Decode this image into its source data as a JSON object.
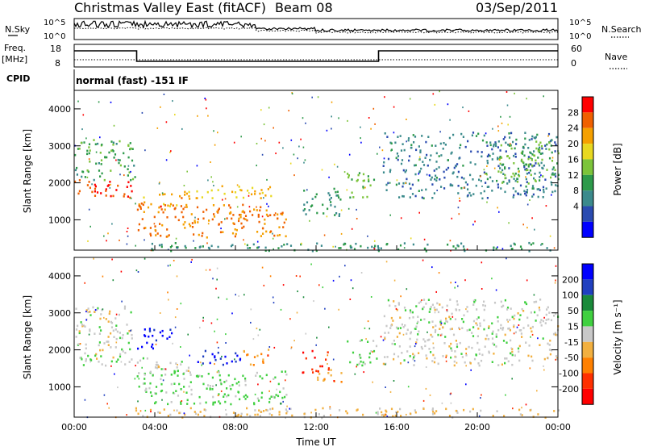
{
  "header": {
    "title": "Christmas Valley East (fitACF)",
    "beam": "Beam 08",
    "date": "03/Sep/2011"
  },
  "noise_panel": {
    "left_label": "N.Sky",
    "right_label": "N.Search",
    "y_ticks_left": [
      "10^5",
      "10^0"
    ],
    "y_ticks_right": [
      "10^5",
      "10^0"
    ]
  },
  "freq_panel": {
    "left_label_line1": "Freq.",
    "left_label_line2": "[MHz]",
    "right_label": "Nave",
    "y_ticks_left": [
      "18",
      "8"
    ],
    "y_ticks_right": [
      "60",
      "0"
    ],
    "freq_steps": [
      [
        0,
        16
      ],
      [
        3.1,
        9.5
      ],
      [
        15.1,
        16
      ],
      [
        24,
        16
      ]
    ]
  },
  "cpid": {
    "label": "CPID",
    "text": "normal (fast) -151 IF"
  },
  "power_panel": {
    "ylabel": "Slant Range [km]",
    "y_ticks": [
      "1000",
      "2000",
      "3000",
      "4000"
    ],
    "colorbar_label": "Power [dB]",
    "colorbar_ticks": [
      "4",
      "8",
      "12",
      "16",
      "20",
      "24",
      "28"
    ],
    "colors": [
      "#0000ff",
      "#2a4bb0",
      "#3b8a8c",
      "#2d9a4a",
      "#7cc43a",
      "#e8d820",
      "#f5a000",
      "#f06000",
      "#ff0000"
    ]
  },
  "velocity_panel": {
    "ylabel": "Slant Range [km]",
    "y_ticks": [
      "1000",
      "2000",
      "3000",
      "4000"
    ],
    "colorbar_label": "Velocity [m s⁻¹]",
    "colorbar_ticks": [
      "200",
      "100",
      "50",
      "15",
      "-15",
      "-50",
      "-100",
      "-200"
    ],
    "colors": [
      "#0000ff",
      "#2040c0",
      "#1a8a3a",
      "#40d040",
      "#c8c8c8",
      "#f2b040",
      "#ff8000",
      "#ff3000",
      "#ff0000"
    ]
  },
  "x_axis": {
    "label": "Time UT",
    "ticks": [
      "00:00",
      "04:00",
      "08:00",
      "12:00",
      "16:00",
      "20:00",
      "00:00"
    ]
  },
  "chart_data": [
    {
      "type": "heatmap",
      "title": "Christmas Valley East (fitACF)",
      "xlabel": "Time UT",
      "ylabel": "Slant Range [km]",
      "xlim": [
        0,
        24
      ],
      "ylim": [
        180,
        4500
      ],
      "colorbar": "Power [dB]",
      "clim": [
        0,
        30
      ],
      "regions": [
        {
          "t0": 0.0,
          "t1": 3.0,
          "r0": 1600,
          "r1": 2100,
          "value": 26
        },
        {
          "t0": 0.0,
          "t1": 3.0,
          "r0": 2100,
          "r1": 3200,
          "value": 12
        },
        {
          "t0": 3.1,
          "t1": 5.8,
          "r0": 1350,
          "r1": 1800,
          "value": 22
        },
        {
          "t0": 3.1,
          "t1": 10.5,
          "r0": 550,
          "r1": 1450,
          "value": 24
        },
        {
          "t0": 6.0,
          "t1": 9.8,
          "r0": 1600,
          "r1": 1950,
          "value": 20
        },
        {
          "t0": 11.3,
          "t1": 13.2,
          "r0": 1100,
          "r1": 1900,
          "value": 10
        },
        {
          "t0": 13.5,
          "t1": 15.0,
          "r0": 1600,
          "r1": 2300,
          "value": 14
        },
        {
          "t0": 15.3,
          "t1": 24.0,
          "r0": 1600,
          "r1": 3400,
          "value": 8
        },
        {
          "t0": 21.0,
          "t1": 24.0,
          "r0": 2000,
          "r1": 3200,
          "value": 14
        },
        {
          "t0": 3.0,
          "t1": 24.0,
          "r0": 180,
          "r1": 400,
          "value": 10
        }
      ]
    },
    {
      "type": "heatmap",
      "xlabel": "Time UT",
      "ylabel": "Slant Range [km]",
      "xlim": [
        0,
        24
      ],
      "ylim": [
        180,
        4500
      ],
      "colorbar": "Velocity [m s⁻¹]",
      "clim": [
        -250,
        250
      ],
      "regions": [
        {
          "t0": 0.0,
          "t1": 3.0,
          "r0": 1600,
          "r1": 3200,
          "value": 0
        },
        {
          "t0": 3.1,
          "t1": 5.0,
          "r0": 2050,
          "r1": 2600,
          "value": 220
        },
        {
          "t0": 3.1,
          "t1": 5.8,
          "r0": 1350,
          "r1": 1800,
          "value": 0
        },
        {
          "t0": 3.1,
          "t1": 10.5,
          "r0": 550,
          "r1": 1450,
          "value": 40
        },
        {
          "t0": 6.0,
          "t1": 8.2,
          "r0": 1600,
          "r1": 2000,
          "value": 180
        },
        {
          "t0": 8.2,
          "t1": 9.6,
          "r0": 1600,
          "r1": 2050,
          "value": -100
        },
        {
          "t0": 11.3,
          "t1": 12.6,
          "r0": 1400,
          "r1": 2000,
          "value": -200
        },
        {
          "t0": 12.0,
          "t1": 13.4,
          "r0": 1100,
          "r1": 1500,
          "value": -80
        },
        {
          "t0": 13.5,
          "t1": 15.0,
          "r0": 1600,
          "r1": 2300,
          "value": 40
        },
        {
          "t0": 15.3,
          "t1": 24.0,
          "r0": 1600,
          "r1": 3400,
          "value": 0
        },
        {
          "t0": 3.0,
          "t1": 24.0,
          "r0": 180,
          "r1": 450,
          "value": -40
        }
      ]
    }
  ]
}
